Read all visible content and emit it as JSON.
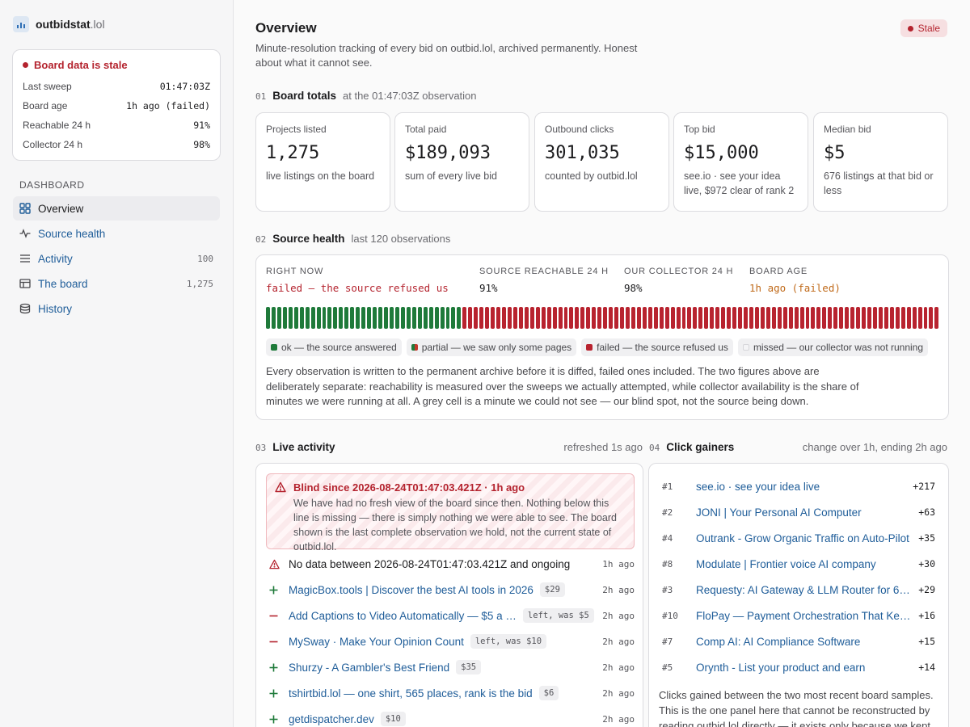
{
  "brand": {
    "name": "outbidstat",
    "tld": ".lol"
  },
  "status_card": {
    "title": "Board data is stale",
    "rows": [
      {
        "label": "Last sweep",
        "value": "01:47:03Z"
      },
      {
        "label": "Board age",
        "value": "1h ago (failed)"
      },
      {
        "label": "Reachable 24 h",
        "value": "91%"
      },
      {
        "label": "Collector 24 h",
        "value": "98%"
      }
    ]
  },
  "nav": {
    "heading": "DASHBOARD",
    "items": [
      {
        "label": "Overview",
        "count": "",
        "icon": "grid-icon",
        "active": true
      },
      {
        "label": "Source health",
        "count": "",
        "icon": "pulse-icon"
      },
      {
        "label": "Activity",
        "count": "100",
        "icon": "list-icon"
      },
      {
        "label": "The board",
        "count": "1,275",
        "icon": "table-icon"
      },
      {
        "label": "History",
        "count": "",
        "icon": "database-icon"
      }
    ]
  },
  "header": {
    "title": "Overview",
    "badge": "Stale",
    "subtitle": "Minute-resolution tracking of every bid on outbid.lol, archived permanently. Honest about what it cannot see."
  },
  "totals": {
    "num": "01",
    "title": "Board totals",
    "sub": "at the 01:47:03Z observation",
    "cards": [
      {
        "label": "Projects listed",
        "value": "1,275",
        "note": "live listings on the board"
      },
      {
        "label": "Total paid",
        "value": "$189,093",
        "note": "sum of every live bid"
      },
      {
        "label": "Outbound clicks",
        "value": "301,035",
        "note": "counted by outbid.lol"
      },
      {
        "label": "Top bid",
        "value": "$15,000",
        "note": "see.io · see your idea live, $972 clear of rank 2"
      },
      {
        "label": "Median bid",
        "value": "$5",
        "note": "676 listings at that bid or less"
      }
    ]
  },
  "health": {
    "num": "02",
    "title": "Source health",
    "sub": "last 120 observations",
    "cols": [
      {
        "label": "RIGHT NOW",
        "value": "failed — the source refused us",
        "tone": "bad"
      },
      {
        "label": "SOURCE REACHABLE 24 H",
        "value": "91%",
        "tone": "plain"
      },
      {
        "label": "OUR COLLECTOR 24 H",
        "value": "98%",
        "tone": "plain"
      },
      {
        "label": "BOARD AGE",
        "value": "1h ago (failed)",
        "tone": "warn"
      }
    ],
    "observations": {
      "ok": 35,
      "failed": 85
    },
    "colors": {
      "ok": "#1f7a3a",
      "failed": "#b8232f",
      "partial_a": "#1f7a3a",
      "partial_b": "#c0392b",
      "missed": "#f0f0f2"
    },
    "legend": [
      {
        "label": "ok — the source answered",
        "kind": "ok"
      },
      {
        "label": "partial — we saw only some pages",
        "kind": "partial"
      },
      {
        "label": "failed — the source refused us",
        "kind": "failed"
      },
      {
        "label": "missed — our collector was not running",
        "kind": "missed"
      }
    ],
    "text": "Every observation is written to the permanent archive before it is diffed, failed ones included. The two figures above are deliberately separate: reachability is measured over the sweeps we actually attempted, while collector availability is the share of minutes we were running at all. A grey cell is a minute we could not see — our blind spot, not the source being down."
  },
  "activity": {
    "num": "03",
    "title": "Live activity",
    "sub": "refreshed 1s ago",
    "blind_title": "Blind since 2026-08-24T01:47:03.421Z · 1h ago",
    "blind_text": "We have had no fresh view of the board since then. Nothing below this line is missing — there is simply nothing we were able to see. The board shown is the last complete observation we hold, not the current state of outbid.lol.",
    "rows": [
      {
        "kind": "gap",
        "text": "No data between 2026-08-24T01:47:03.421Z and ongoing",
        "tag": "",
        "ago": "1h ago"
      },
      {
        "kind": "add",
        "text": "MagicBox.tools | Discover the best AI tools in 2026",
        "tag": "$29",
        "ago": "2h ago"
      },
      {
        "kind": "remove",
        "text": "Add Captions to Video Automatically — $5 a …",
        "tag": "left, was $5",
        "ago": "2h ago"
      },
      {
        "kind": "remove",
        "text": "MySway · Make Your Opinion Count",
        "tag": "left, was $10",
        "ago": "2h ago"
      },
      {
        "kind": "add",
        "text": "Shurzy - A Gambler's Best Friend",
        "tag": "$35",
        "ago": "2h ago"
      },
      {
        "kind": "add",
        "text": "tshirtbid.lol — one shirt, 565 places, rank is the bid",
        "tag": "$6",
        "ago": "2h ago"
      },
      {
        "kind": "add",
        "text": "getdispatcher.dev",
        "tag": "$10",
        "ago": "2h ago"
      }
    ]
  },
  "gainers": {
    "num": "04",
    "title": "Click gainers",
    "sub": "change over 1h, ending 2h ago",
    "rows": [
      {
        "rank": "#1",
        "name": "see.io · see your idea live",
        "delta": "+217"
      },
      {
        "rank": "#2",
        "name": "JONI | Your Personal AI Computer",
        "delta": "+63"
      },
      {
        "rank": "#4",
        "name": "Outrank - Grow Organic Traffic on Auto-Pilot",
        "delta": "+35"
      },
      {
        "rank": "#8",
        "name": "Modulate | Frontier voice AI company",
        "delta": "+30"
      },
      {
        "rank": "#3",
        "name": "Requesty: AI Gateway & LLM Router for 6…",
        "delta": "+29"
      },
      {
        "rank": "#10",
        "name": "FloPay — Payment Orchestration That Kee…",
        "delta": "+16"
      },
      {
        "rank": "#7",
        "name": "Comp AI: AI Compliance Software",
        "delta": "+15"
      },
      {
        "rank": "#5",
        "name": "Orynth - List your product and earn",
        "delta": "+14"
      }
    ],
    "footer": "Clicks gained between the two most recent board samples. This is the one panel here that cannot be reconstructed by reading outbid.lol directly — it exists only because we kept every sample."
  }
}
